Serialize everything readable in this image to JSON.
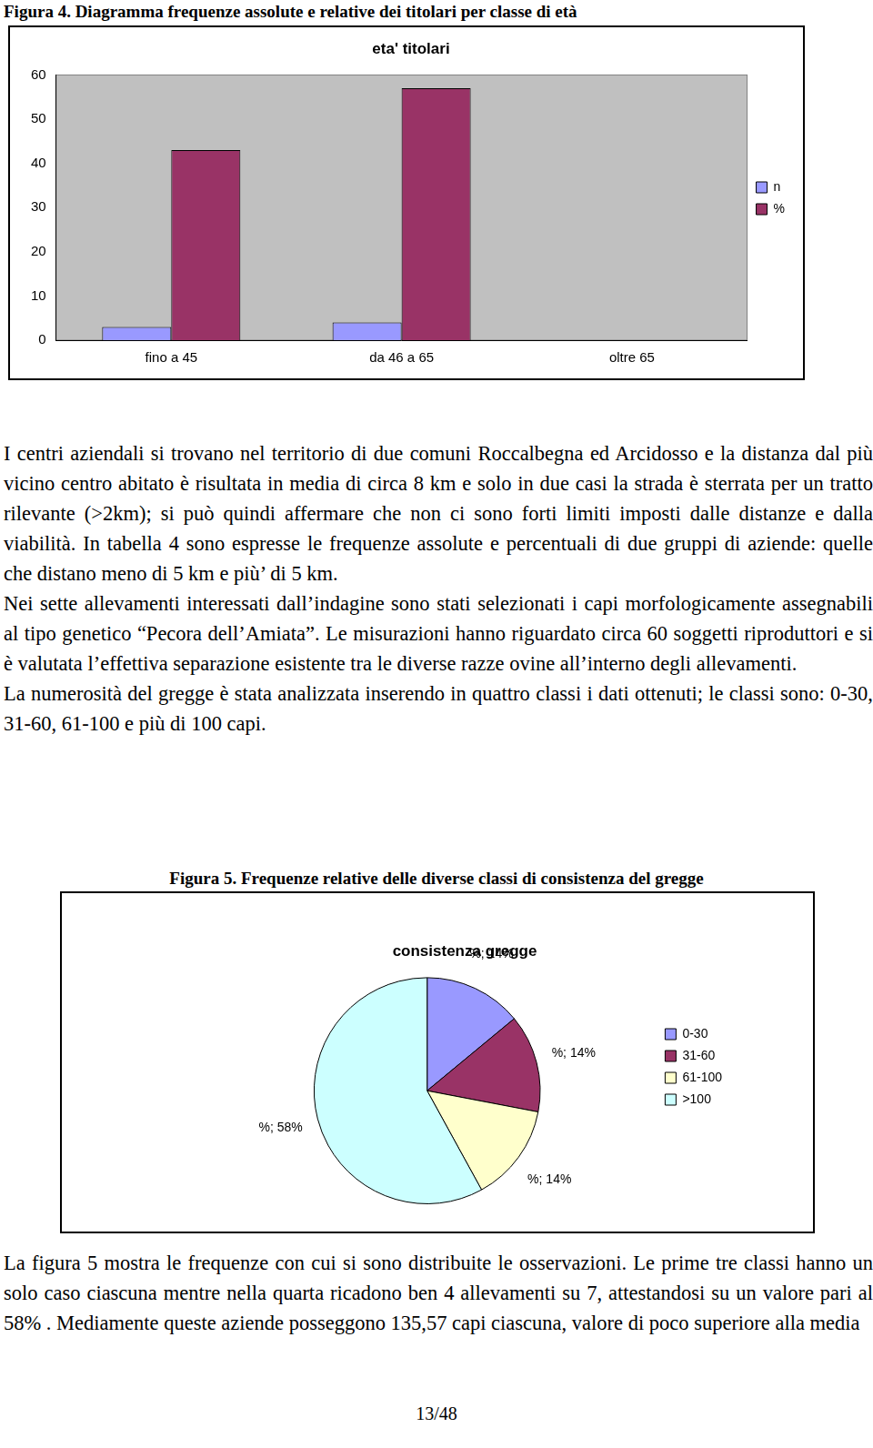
{
  "document": {
    "figure_4_caption": "Figura 4. Diagramma frequenze assolute e relative dei titolari per classe di età",
    "paragraphs_before_figure_5": [
      "I centri aziendali si trovano nel territorio di due comuni Roccalbegna ed Arcidosso e la distanza dal più vicino centro abitato è risultata in media di circa 8 km e solo in due casi la strada è sterrata per un tratto rilevante (>2km); si può quindi affermare che non ci sono forti limiti imposti dalle distanze e dalla viabilità. In tabella 4 sono espresse le frequenze assolute e percentuali di due gruppi di aziende: quelle che distano meno di 5 km e più’ di 5 km.",
      "Nei sette allevamenti interessati dall’indagine sono stati selezionati i capi morfologicamente assegnabili al tipo genetico “Pecora dell’Amiata”. Le misurazioni hanno riguardato circa 60 soggetti riproduttori e si è valutata l’effettiva separazione esistente tra le diverse razze ovine all’interno degli allevamenti.",
      "La numerosità del gregge è stata analizzata inserendo in quattro classi i dati ottenuti; le classi sono: 0-30, 31-60, 61-100 e più di 100 capi."
    ],
    "figure_5_caption": "Figura 5. Frequenze relative delle diverse classi di consistenza del gregge",
    "paragraphs_after_figure_5": [
      "La figura 5 mostra le frequenze con cui si sono distribuite le osservazioni. Le prime tre classi hanno un solo caso ciascuna mentre nella quarta ricadono ben 4 allevamenti su 7, attestandosi su un valore pari al 58% . Mediamente queste aziende posseggono 135,57 capi ciascuna, valore di poco superiore alla media"
    ],
    "page_number": "13/48"
  },
  "chart_data": [
    {
      "type": "bar",
      "title": "eta' titolari",
      "categories": [
        "fino a 45",
        "da 46 a 65",
        "oltre 65"
      ],
      "series": [
        {
          "name": "n",
          "color": "#9999ff",
          "values": [
            3,
            4,
            0
          ]
        },
        {
          "name": "%",
          "color": "#993366",
          "values": [
            43,
            57,
            0
          ]
        }
      ],
      "ylim": [
        0,
        60
      ],
      "yticks": [
        0,
        10,
        20,
        30,
        40,
        50,
        60
      ],
      "grid": false,
      "legend": "right"
    },
    {
      "type": "pie",
      "title": "consistenza gregge",
      "categories": [
        "0-30",
        "31-60",
        "61-100",
        ">100"
      ],
      "values": [
        14,
        14,
        14,
        58
      ],
      "value_labels": [
        "%; 14%",
        "%; 14%",
        "%; 14%",
        "%; 58%"
      ],
      "colors": [
        "#9999ff",
        "#993366",
        "#ffffcc",
        "#ccffff"
      ],
      "data_labels": true,
      "legend": "right"
    }
  ]
}
